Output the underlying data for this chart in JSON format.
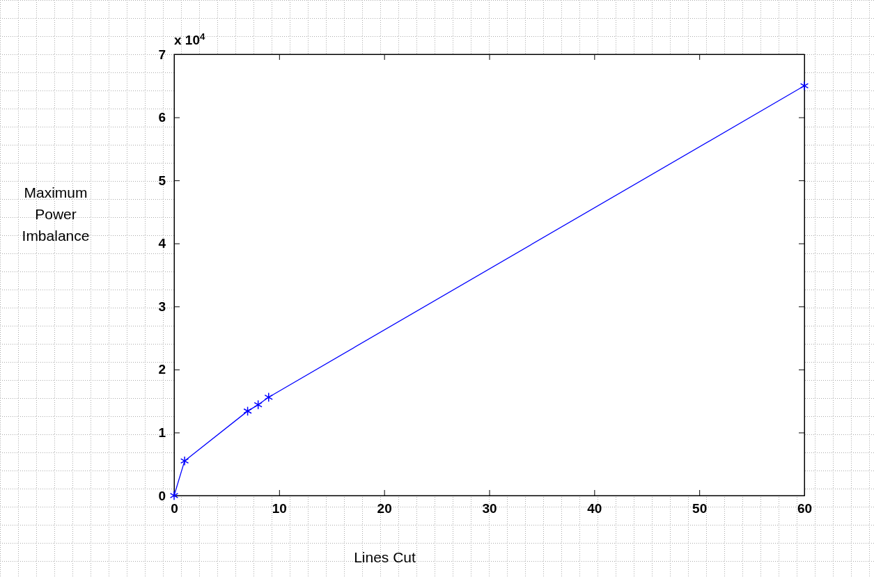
{
  "chart_data": {
    "type": "line",
    "xlabel": "Lines Cut",
    "ylabel": "Maximum Power Imbalance",
    "x": [
      0,
      1,
      7,
      8,
      9,
      60
    ],
    "series": [
      {
        "color": "#0000ff",
        "values": [
          0,
          0.55,
          1.34,
          1.44,
          1.56,
          6.5
        ]
      }
    ],
    "xlim": [
      0,
      60
    ],
    "xticks": [
      0,
      10,
      20,
      30,
      40,
      50,
      60
    ],
    "ylim": [
      0,
      7
    ],
    "yticks": [
      0,
      1,
      2,
      3,
      4,
      5,
      6,
      7
    ],
    "annotations": [
      "x 10$^{4}$"
    ],
    "marker": "cross",
    "line_style": "solid"
  }
}
